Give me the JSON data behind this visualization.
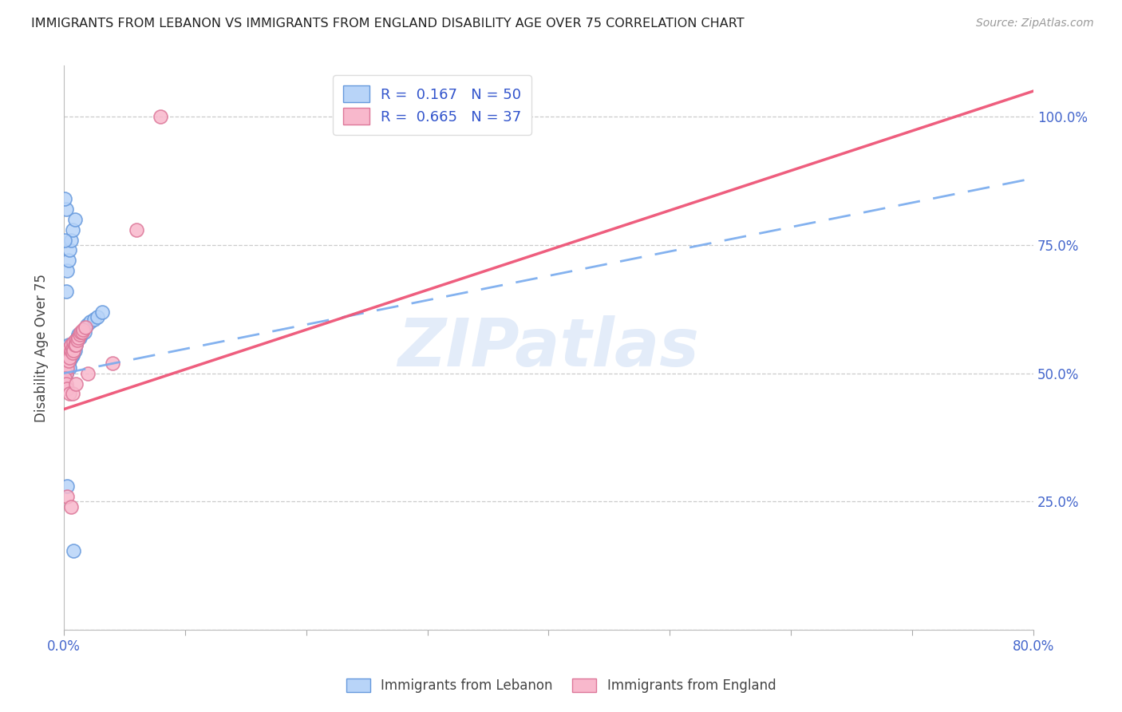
{
  "title": "IMMIGRANTS FROM LEBANON VS IMMIGRANTS FROM ENGLAND DISABILITY AGE OVER 75 CORRELATION CHART",
  "source": "Source: ZipAtlas.com",
  "ylabel": "Disability Age Over 75",
  "xmin": 0.0,
  "xmax": 0.8,
  "ymin": 0.0,
  "ymax": 1.1,
  "ytick_positions": [
    0.0,
    0.25,
    0.5,
    0.75,
    1.0
  ],
  "ytick_labels_right": [
    "",
    "25.0%",
    "50.0%",
    "75.0%",
    "100.0%"
  ],
  "xtick_positions": [
    0.0,
    0.1,
    0.2,
    0.3,
    0.4,
    0.5,
    0.6,
    0.7,
    0.8
  ],
  "xtick_labels": [
    "0.0%",
    "",
    "",
    "",
    "",
    "",
    "",
    "",
    "80.0%"
  ],
  "lebanon_color_face": "#b8d4f8",
  "lebanon_color_edge": "#6699dd",
  "england_color_face": "#f8b8cc",
  "england_color_edge": "#dd7799",
  "trendline_lebanon_color": "#77aaee",
  "trendline_england_color": "#ee5577",
  "legend_R_N_color": "#3355cc",
  "legend_label_1": "R =  0.167   N = 50",
  "legend_label_2": "R =  0.665   N = 37",
  "bottom_label_1": "Immigrants from Lebanon",
  "bottom_label_2": "Immigrants from England",
  "watermark_text": "ZIPatlas",
  "watermark_color": "#ccddf5",
  "lebanon_scatter_x": [
    0.001,
    0.001,
    0.002,
    0.002,
    0.002,
    0.003,
    0.003,
    0.003,
    0.004,
    0.004,
    0.004,
    0.005,
    0.005,
    0.005,
    0.005,
    0.006,
    0.006,
    0.006,
    0.007,
    0.007,
    0.007,
    0.008,
    0.008,
    0.009,
    0.009,
    0.01,
    0.01,
    0.011,
    0.012,
    0.013,
    0.014,
    0.015,
    0.017,
    0.019,
    0.022,
    0.025,
    0.028,
    0.032,
    0.002,
    0.003,
    0.004,
    0.005,
    0.006,
    0.007,
    0.009,
    0.001,
    0.002,
    0.001,
    0.003,
    0.008
  ],
  "lebanon_scatter_y": [
    0.505,
    0.51,
    0.52,
    0.515,
    0.5,
    0.53,
    0.525,
    0.545,
    0.535,
    0.515,
    0.555,
    0.54,
    0.525,
    0.51,
    0.55,
    0.545,
    0.53,
    0.555,
    0.555,
    0.535,
    0.545,
    0.55,
    0.54,
    0.56,
    0.545,
    0.565,
    0.555,
    0.57,
    0.575,
    0.57,
    0.575,
    0.58,
    0.58,
    0.595,
    0.6,
    0.605,
    0.61,
    0.62,
    0.66,
    0.7,
    0.72,
    0.74,
    0.76,
    0.78,
    0.8,
    0.76,
    0.82,
    0.84,
    0.28,
    0.155
  ],
  "england_scatter_x": [
    0.001,
    0.002,
    0.002,
    0.003,
    0.003,
    0.004,
    0.004,
    0.005,
    0.005,
    0.006,
    0.006,
    0.007,
    0.007,
    0.008,
    0.008,
    0.009,
    0.01,
    0.01,
    0.011,
    0.012,
    0.013,
    0.014,
    0.015,
    0.016,
    0.018,
    0.001,
    0.002,
    0.003,
    0.005,
    0.007,
    0.01,
    0.02,
    0.04,
    0.06,
    0.08,
    0.003,
    0.006
  ],
  "england_scatter_y": [
    0.505,
    0.52,
    0.5,
    0.54,
    0.51,
    0.545,
    0.525,
    0.55,
    0.53,
    0.545,
    0.555,
    0.55,
    0.54,
    0.56,
    0.545,
    0.555,
    0.565,
    0.555,
    0.565,
    0.57,
    0.575,
    0.58,
    0.58,
    0.585,
    0.59,
    0.49,
    0.48,
    0.47,
    0.46,
    0.46,
    0.48,
    0.5,
    0.52,
    0.78,
    1.0,
    0.26,
    0.24
  ],
  "leb_trendline_x0": 0.0,
  "leb_trendline_y0": 0.5,
  "leb_trendline_x1": 0.8,
  "leb_trendline_y1": 0.88,
  "eng_trendline_x0": 0.0,
  "eng_trendline_y0": 0.43,
  "eng_trendline_x1": 0.8,
  "eng_trendline_y1": 1.05
}
